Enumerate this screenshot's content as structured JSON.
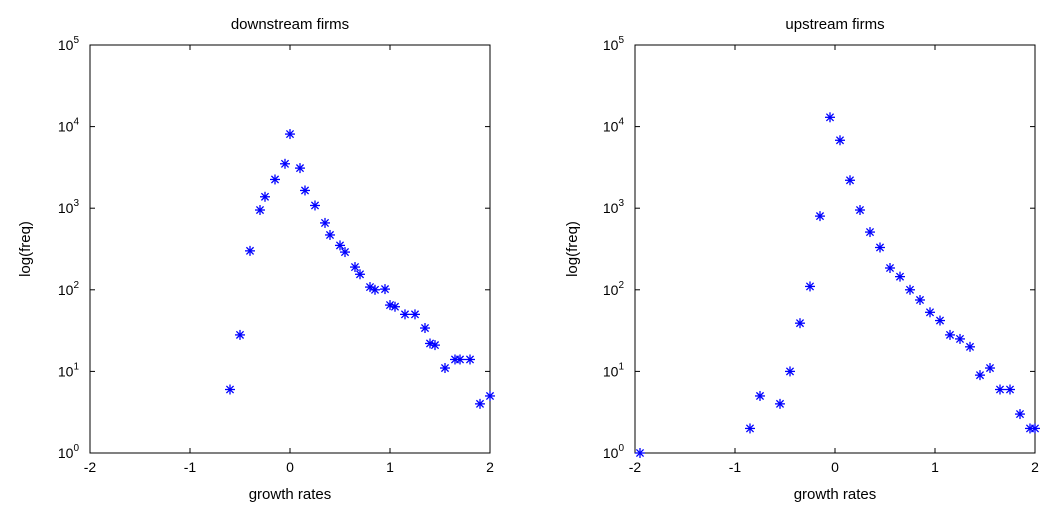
{
  "chart_data": [
    {
      "type": "scatter",
      "title": "downstream firms",
      "xlabel": "growth rates",
      "ylabel": "log(freq)",
      "xlim": [
        -2,
        2
      ],
      "ylim": [
        1,
        100000
      ],
      "yscale": "log",
      "x_ticks": [
        -2,
        -1,
        0,
        1,
        2
      ],
      "y_ticks": [
        1,
        10,
        100,
        1000,
        10000,
        100000
      ],
      "marker": "*",
      "color": "#0000ff",
      "grid": false,
      "x": [
        -0.6,
        -0.5,
        -0.4,
        -0.3,
        -0.25,
        -0.15,
        -0.05,
        0.0,
        0.1,
        0.15,
        0.25,
        0.35,
        0.4,
        0.5,
        0.55,
        0.65,
        0.7,
        0.8,
        0.85,
        0.95,
        1.0,
        1.05,
        1.15,
        1.25,
        1.35,
        1.4,
        1.45,
        1.55,
        1.65,
        1.7,
        1.8,
        1.9,
        2.0
      ],
      "y": [
        6,
        28,
        300,
        950,
        1380,
        2250,
        3500,
        8100,
        3100,
        1650,
        1080,
        660,
        470,
        350,
        290,
        190,
        155,
        108,
        100,
        102,
        65,
        62,
        50,
        50,
        34,
        22,
        21,
        11,
        14,
        14,
        14,
        4,
        5
      ]
    },
    {
      "type": "scatter",
      "title": "upstream firms",
      "xlabel": "growth rates",
      "ylabel": "log(freq)",
      "xlim": [
        -2,
        2
      ],
      "ylim": [
        1,
        100000
      ],
      "yscale": "log",
      "x_ticks": [
        -2,
        -1,
        0,
        1,
        2
      ],
      "y_ticks": [
        1,
        10,
        100,
        1000,
        10000,
        100000
      ],
      "marker": "*",
      "color": "#0000ff",
      "grid": false,
      "x": [
        -1.95,
        -0.85,
        -0.75,
        -0.55,
        -0.45,
        -0.35,
        -0.25,
        -0.15,
        -0.05,
        0.05,
        0.15,
        0.25,
        0.35,
        0.45,
        0.55,
        0.65,
        0.75,
        0.85,
        0.95,
        1.05,
        1.15,
        1.25,
        1.35,
        1.45,
        1.55,
        1.65,
        1.75,
        1.85,
        1.95,
        2.0
      ],
      "y": [
        1,
        2,
        5,
        4,
        10,
        39,
        110,
        800,
        13000,
        6800,
        2200,
        950,
        510,
        330,
        185,
        145,
        100,
        75,
        53,
        42,
        28,
        25,
        20,
        9,
        11,
        6,
        6,
        3,
        2,
        2
      ]
    }
  ]
}
